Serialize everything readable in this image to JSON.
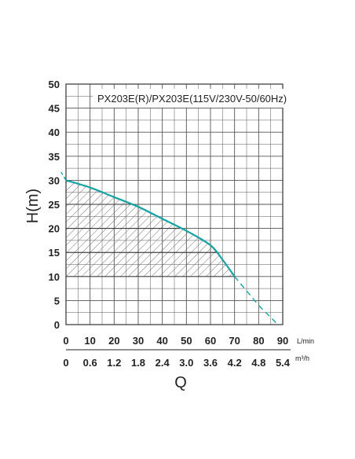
{
  "chart_data": {
    "type": "line",
    "title": "PX203E(R)/PX203E(115V/230V-50/60Hz)",
    "xlabel": "Q",
    "ylabel": "H(m)",
    "x_unit": "L/min",
    "x2_unit": "m³/h",
    "xlim": [
      0,
      90
    ],
    "ylim": [
      0,
      50
    ],
    "x_ticks": [
      "0",
      "10",
      "20",
      "30",
      "40",
      "50",
      "60",
      "70",
      "80",
      "90"
    ],
    "x2_ticks": [
      "0",
      "0.6",
      "1.2",
      "1.8",
      "2.4",
      "3.0",
      "3.6",
      "4.2",
      "4.8",
      "5.4"
    ],
    "y_ticks": [
      "0",
      "5",
      "10",
      "15",
      "20",
      "25",
      "30",
      "35",
      "40",
      "45",
      "50"
    ],
    "grid": true,
    "curve": {
      "x": [
        0,
        10,
        20,
        30,
        40,
        50,
        60,
        65,
        70
      ],
      "y": [
        30,
        28.5,
        26.5,
        24.5,
        22,
        19.5,
        16.5,
        13.5,
        10
      ]
    },
    "extrapolation": {
      "x": [
        -2,
        0,
        70,
        80,
        88
      ],
      "y": [
        31.7,
        30,
        10,
        4,
        0
      ]
    },
    "operating_region": {
      "x_min": 0,
      "x_max": 70,
      "y_min": 10
    },
    "colors": {
      "curve": "#17a3a3",
      "grid": "#555555",
      "hatch": "#666666",
      "text": "#222222"
    }
  }
}
